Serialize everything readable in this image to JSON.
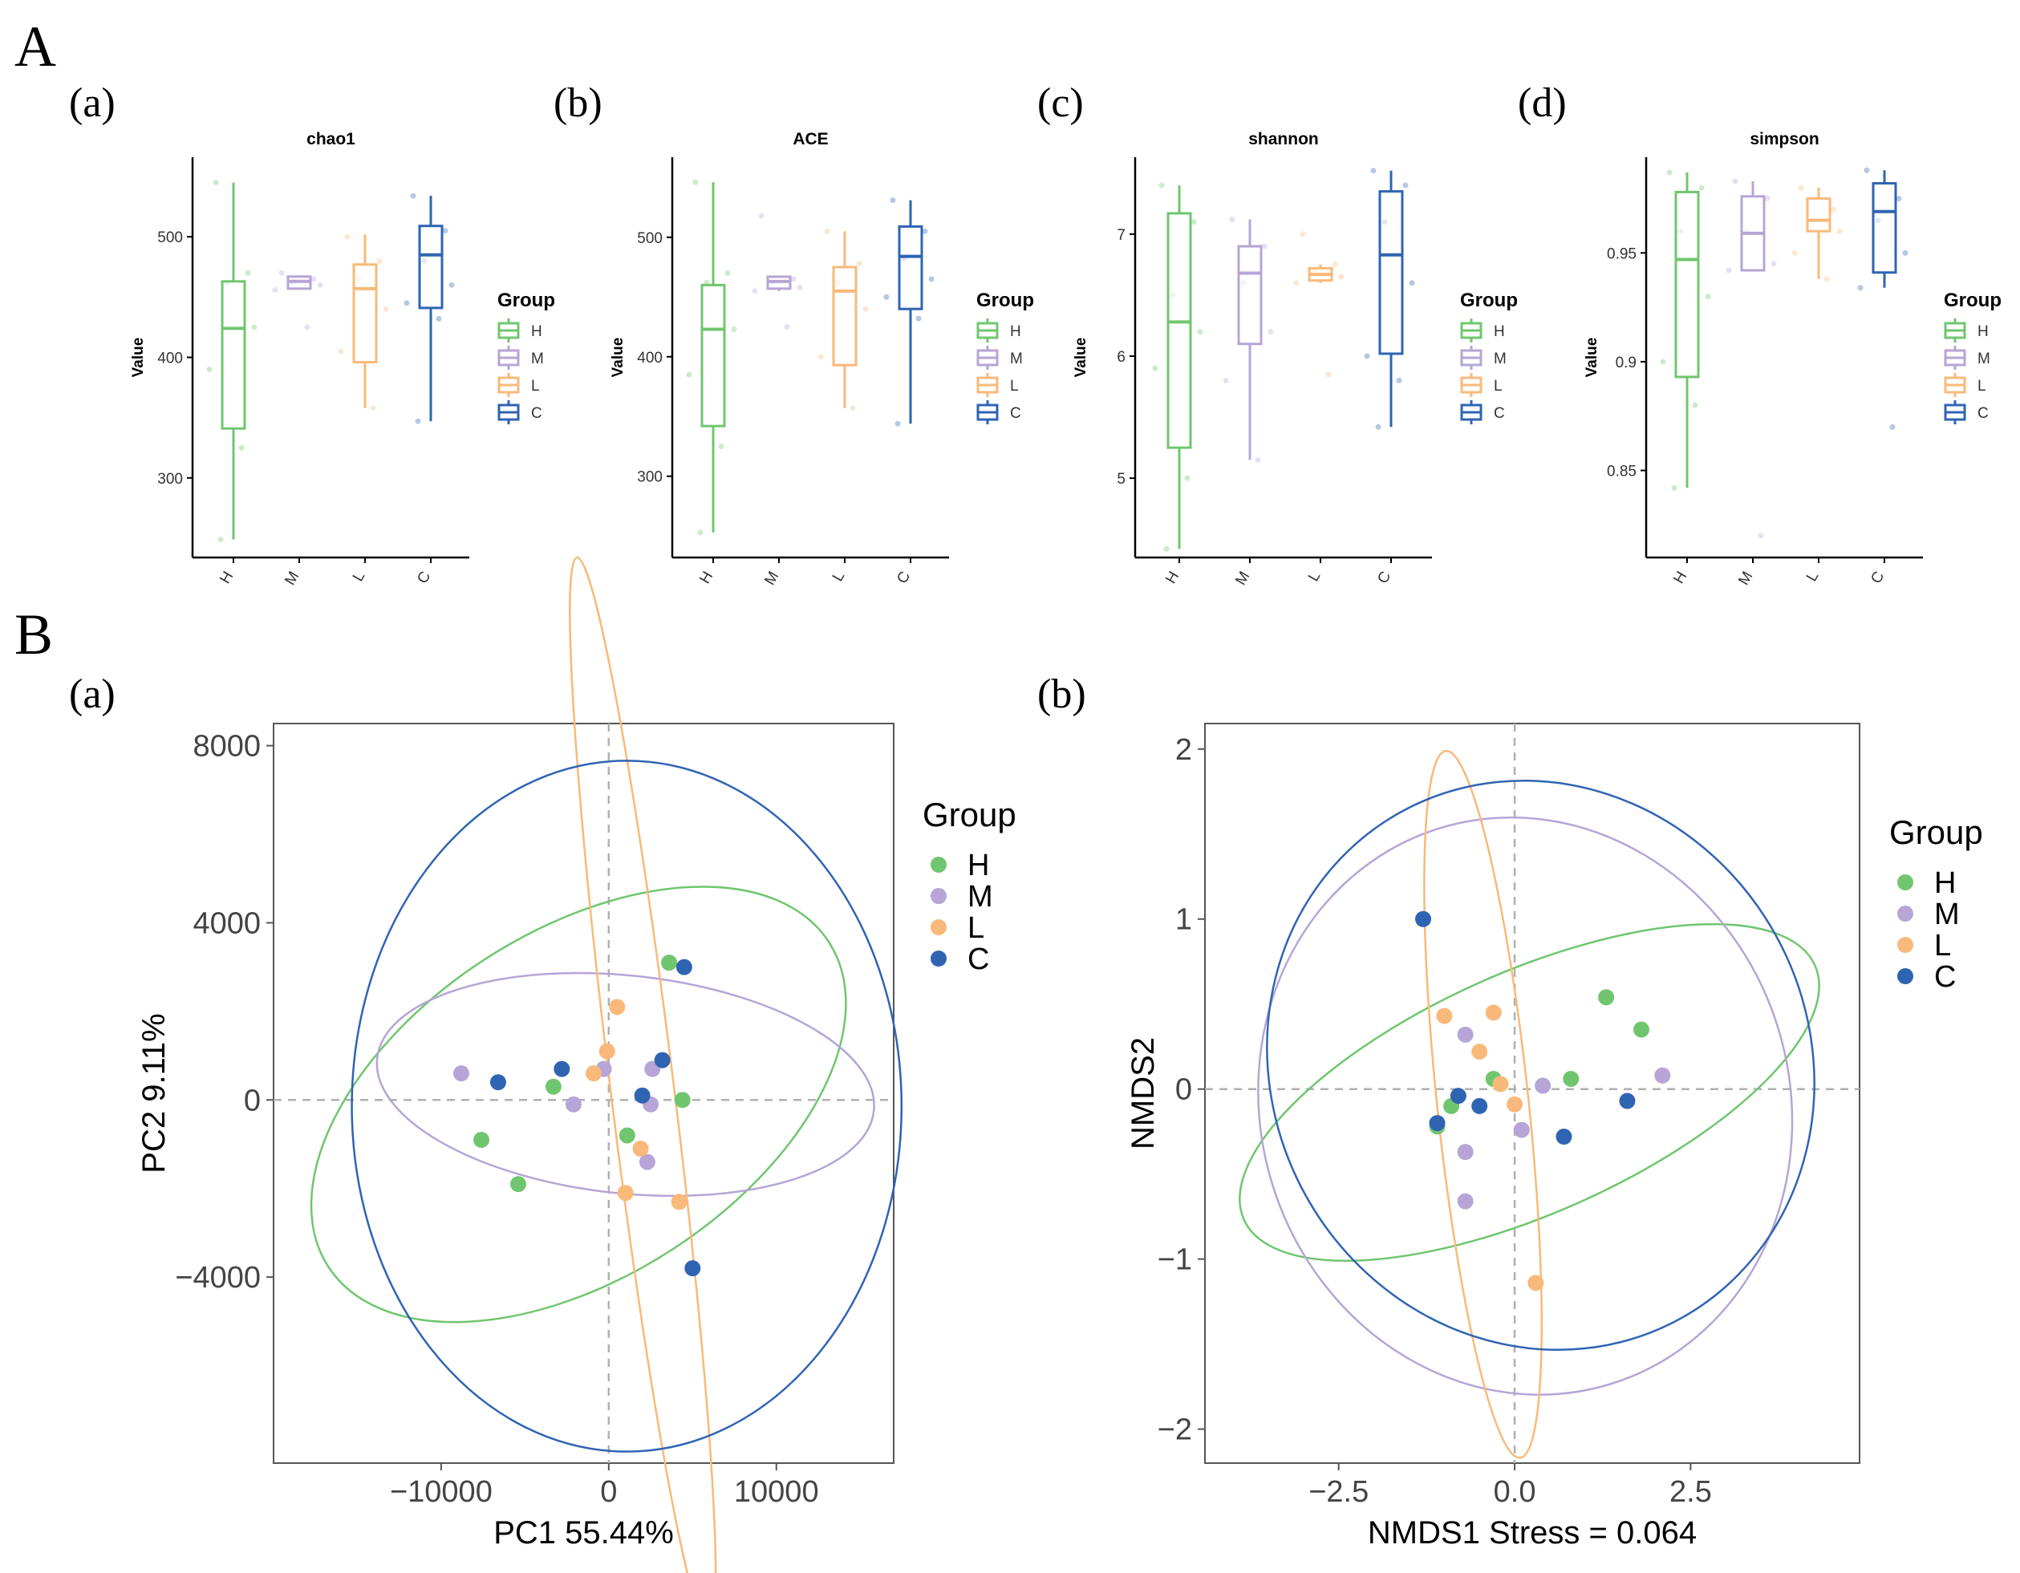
{
  "section_labels": {
    "A": "A",
    "B": "B"
  },
  "panel_labels": {
    "a": "(a)",
    "b": "(b)",
    "c": "(c)",
    "d": "(d)"
  },
  "colors": {
    "H": "#70c66e",
    "M": "#b6a5d6",
    "L": "#f9b97a",
    "C": "#2f64b3",
    "axis": "#000000",
    "frame": "#555555",
    "dash": "#b0b0b0"
  },
  "legend": {
    "title": "Group",
    "groups": [
      "H",
      "M",
      "L",
      "C"
    ]
  },
  "chart_data": [
    {
      "type": "box",
      "panel": "(a)",
      "title": "chao1",
      "ylabel": "Value",
      "categories": [
        "H",
        "M",
        "L",
        "C"
      ],
      "yticks": [
        300,
        400,
        500
      ],
      "ylim": [
        234,
        566
      ],
      "boxes": [
        {
          "group": "H",
          "min": 249,
          "q1": 341,
          "median": 424,
          "q3": 463,
          "max": 545
        },
        {
          "group": "M",
          "min": 456,
          "q1": 457,
          "median": 463,
          "q3": 467,
          "max": 467
        },
        {
          "group": "L",
          "min": 358,
          "q1": 396,
          "median": 457,
          "q3": 477,
          "max": 502
        },
        {
          "group": "C",
          "min": 347,
          "q1": 441,
          "median": 485,
          "q3": 509,
          "max": 534
        }
      ],
      "points": [
        {
          "group": "H",
          "values": [
            545,
            470,
            462,
            425,
            390,
            325,
            249
          ]
        },
        {
          "group": "M",
          "values": [
            470,
            465,
            462,
            460,
            456,
            425
          ]
        },
        {
          "group": "L",
          "values": [
            500,
            480,
            465,
            440,
            405,
            358
          ]
        },
        {
          "group": "C",
          "values": [
            534,
            505,
            480,
            460,
            445,
            432,
            347
          ]
        }
      ]
    },
    {
      "type": "box",
      "panel": "(b)",
      "title": "ACE",
      "ylabel": "Value",
      "categories": [
        "H",
        "M",
        "L",
        "C"
      ],
      "yticks": [
        300,
        400,
        500
      ],
      "ylim": [
        232,
        567
      ],
      "boxes": [
        {
          "group": "H",
          "min": 253,
          "q1": 342,
          "median": 423,
          "q3": 460,
          "max": 546
        },
        {
          "group": "M",
          "min": 455,
          "q1": 457,
          "median": 463,
          "q3": 467,
          "max": 467
        },
        {
          "group": "L",
          "min": 357,
          "q1": 393,
          "median": 455,
          "q3": 475,
          "max": 505
        },
        {
          "group": "C",
          "min": 344,
          "q1": 440,
          "median": 484,
          "q3": 509,
          "max": 531
        }
      ],
      "points": [
        {
          "group": "H",
          "values": [
            546,
            470,
            462,
            423,
            385,
            325,
            253
          ]
        },
        {
          "group": "M",
          "values": [
            518,
            465,
            462,
            458,
            455,
            425
          ]
        },
        {
          "group": "L",
          "values": [
            505,
            478,
            462,
            440,
            400,
            357
          ]
        },
        {
          "group": "C",
          "values": [
            531,
            505,
            482,
            465,
            450,
            432,
            344
          ]
        }
      ]
    },
    {
      "type": "box",
      "panel": "(c)",
      "title": "shannon",
      "ylabel": "Value",
      "categories": [
        "H",
        "M",
        "L",
        "C"
      ],
      "yticks": [
        5,
        6,
        7
      ],
      "ylim": [
        4.35,
        7.63
      ],
      "boxes": [
        {
          "group": "H",
          "min": 4.42,
          "q1": 5.25,
          "median": 6.28,
          "q3": 7.17,
          "max": 7.4
        },
        {
          "group": "M",
          "min": 5.15,
          "q1": 6.1,
          "median": 6.68,
          "q3": 6.9,
          "max": 7.12
        },
        {
          "group": "L",
          "min": 6.6,
          "q1": 6.62,
          "median": 6.67,
          "q3": 6.72,
          "max": 6.75
        },
        {
          "group": "C",
          "min": 5.42,
          "q1": 6.02,
          "median": 6.83,
          "q3": 7.35,
          "max": 7.52
        }
      ],
      "points": [
        {
          "group": "H",
          "values": [
            7.4,
            7.1,
            6.5,
            6.2,
            5.9,
            5.0,
            4.42
          ]
        },
        {
          "group": "M",
          "values": [
            7.12,
            6.9,
            6.6,
            6.2,
            5.8,
            5.15
          ]
        },
        {
          "group": "L",
          "values": [
            7.0,
            6.75,
            6.7,
            6.65,
            6.6,
            5.85
          ]
        },
        {
          "group": "C",
          "values": [
            7.52,
            7.4,
            7.1,
            6.6,
            6.0,
            5.8,
            5.42
          ]
        }
      ]
    },
    {
      "type": "box",
      "panel": "(d)",
      "title": "simpson",
      "ylabel": "Value",
      "categories": [
        "H",
        "M",
        "L",
        "C"
      ],
      "yticks": [
        0.85,
        0.9,
        0.95
      ],
      "ylim": [
        0.81,
        0.994
      ],
      "boxes": [
        {
          "group": "H",
          "min": 0.842,
          "q1": 0.893,
          "median": 0.947,
          "q3": 0.978,
          "max": 0.987
        },
        {
          "group": "M",
          "min": 0.942,
          "q1": 0.942,
          "median": 0.959,
          "q3": 0.976,
          "max": 0.983
        },
        {
          "group": "L",
          "min": 0.938,
          "q1": 0.96,
          "median": 0.965,
          "q3": 0.975,
          "max": 0.98
        },
        {
          "group": "C",
          "min": 0.934,
          "q1": 0.941,
          "median": 0.969,
          "q3": 0.982,
          "max": 0.988
        }
      ],
      "points": [
        {
          "group": "H",
          "values": [
            0.987,
            0.98,
            0.96,
            0.93,
            0.9,
            0.88,
            0.842
          ]
        },
        {
          "group": "M",
          "values": [
            0.983,
            0.975,
            0.96,
            0.945,
            0.942,
            0.82
          ]
        },
        {
          "group": "L",
          "values": [
            0.98,
            0.97,
            0.965,
            0.96,
            0.95,
            0.938
          ]
        },
        {
          "group": "C",
          "values": [
            0.988,
            0.975,
            0.965,
            0.95,
            0.934,
            0.87
          ]
        }
      ]
    },
    {
      "type": "scatter",
      "panel": "(a)",
      "xlabel": "PC1 55.44%",
      "ylabel": "PC2 9.11%",
      "xlim": [
        -20000,
        17000
      ],
      "ylim": [
        -8200,
        8500
      ],
      "xticks": [
        -10000,
        0,
        10000
      ],
      "xtick_labels": [
        "−10000",
        "0",
        "10000"
      ],
      "yticks": [
        -4000,
        0,
        4000,
        8000
      ],
      "ytick_labels": [
        "−4000",
        "0",
        "4000",
        "8000"
      ],
      "points": [
        {
          "group": "H",
          "x": 3600,
          "y": 3100
        },
        {
          "group": "H",
          "x": 4400,
          "y": 0
        },
        {
          "group": "H",
          "x": -3300,
          "y": 300
        },
        {
          "group": "H",
          "x": 1100,
          "y": -800
        },
        {
          "group": "H",
          "x": -7600,
          "y": -900
        },
        {
          "group": "H",
          "x": -5400,
          "y": -1900
        },
        {
          "group": "M",
          "x": -8800,
          "y": 600
        },
        {
          "group": "M",
          "x": -300,
          "y": 700
        },
        {
          "group": "M",
          "x": 2600,
          "y": 700
        },
        {
          "group": "M",
          "x": -2100,
          "y": -100
        },
        {
          "group": "M",
          "x": 2500,
          "y": -100
        },
        {
          "group": "M",
          "x": 2300,
          "y": -1400
        },
        {
          "group": "L",
          "x": 500,
          "y": 2100
        },
        {
          "group": "L",
          "x": -100,
          "y": 1100
        },
        {
          "group": "L",
          "x": -900,
          "y": 600
        },
        {
          "group": "L",
          "x": 1900,
          "y": -1100
        },
        {
          "group": "L",
          "x": 1000,
          "y": -2100
        },
        {
          "group": "L",
          "x": 4200,
          "y": -2300
        },
        {
          "group": "C",
          "x": 4500,
          "y": 3000
        },
        {
          "group": "C",
          "x": 3200,
          "y": 900
        },
        {
          "group": "C",
          "x": -2800,
          "y": 700
        },
        {
          "group": "C",
          "x": -6600,
          "y": 400
        },
        {
          "group": "C",
          "x": 2000,
          "y": 100
        },
        {
          "group": "C",
          "x": 5000,
          "y": -3800
        }
      ],
      "ellipses": [
        {
          "group": "H",
          "cx": -1800,
          "cy": -100,
          "rx": 17800,
          "ry": 3900,
          "angle_deg": 33
        },
        {
          "group": "M",
          "cx": 1000,
          "cy": 350,
          "rx": 14900,
          "ry": 2460,
          "angle_deg": -6
        },
        {
          "group": "L",
          "cx": 2030,
          "cy": 160,
          "rx": 1890,
          "ry": 12180,
          "angle_deg": 7
        },
        {
          "group": "C",
          "cx": 1070,
          "cy": -140,
          "rx": 16400,
          "ry": 7800,
          "angle_deg": 0
        }
      ]
    },
    {
      "type": "scatter",
      "panel": "(b)",
      "xlabel": "NMDS1  Stress = 0.064",
      "ylabel": "NMDS2",
      "xlim": [
        -4.4,
        4.9
      ],
      "ylim": [
        -2.2,
        2.15
      ],
      "xticks": [
        -2.5,
        0,
        2.5
      ],
      "xtick_labels": [
        "−2.5",
        "0.0",
        "2.5"
      ],
      "yticks": [
        -2,
        -1,
        0,
        1,
        2
      ],
      "ytick_labels": [
        "−2",
        "−1",
        "0",
        "1",
        "2"
      ],
      "points": [
        {
          "group": "H",
          "x": 1.3,
          "y": 0.54
        },
        {
          "group": "H",
          "x": 1.8,
          "y": 0.35
        },
        {
          "group": "H",
          "x": 0.8,
          "y": 0.06
        },
        {
          "group": "H",
          "x": -0.3,
          "y": 0.06
        },
        {
          "group": "H",
          "x": -0.9,
          "y": -0.1
        },
        {
          "group": "H",
          "x": -1.1,
          "y": -0.22
        },
        {
          "group": "M",
          "x": -0.7,
          "y": 0.32
        },
        {
          "group": "M",
          "x": 0.4,
          "y": 0.02
        },
        {
          "group": "M",
          "x": 2.1,
          "y": 0.08
        },
        {
          "group": "M",
          "x": 0.1,
          "y": -0.24
        },
        {
          "group": "M",
          "x": -0.7,
          "y": -0.37
        },
        {
          "group": "M",
          "x": -0.7,
          "y": -0.66
        },
        {
          "group": "L",
          "x": -1.0,
          "y": 0.43
        },
        {
          "group": "L",
          "x": -0.3,
          "y": 0.45
        },
        {
          "group": "L",
          "x": -0.5,
          "y": 0.22
        },
        {
          "group": "L",
          "x": -0.2,
          "y": 0.03
        },
        {
          "group": "L",
          "x": 0.0,
          "y": -0.09
        },
        {
          "group": "L",
          "x": 0.3,
          "y": -1.14
        },
        {
          "group": "C",
          "x": -1.3,
          "y": 1.0
        },
        {
          "group": "C",
          "x": -0.8,
          "y": -0.04
        },
        {
          "group": "C",
          "x": -0.5,
          "y": -0.1
        },
        {
          "group": "C",
          "x": -1.1,
          "y": -0.2
        },
        {
          "group": "C",
          "x": 0.7,
          "y": -0.28
        },
        {
          "group": "C",
          "x": 1.6,
          "y": -0.07
        }
      ],
      "ellipses": [
        {
          "group": "H",
          "cx": 0.21,
          "cy": -0.02,
          "rx": 4.44,
          "ry": 0.71,
          "angle_deg": 24
        },
        {
          "group": "M",
          "cx": 0.15,
          "cy": -0.1,
          "rx": 3.76,
          "ry": 1.71,
          "angle_deg": 17
        },
        {
          "group": "L",
          "cx": -0.45,
          "cy": -0.09,
          "rx": 0.65,
          "ry": 2.09,
          "angle_deg": 6
        },
        {
          "group": "C",
          "cx": 0.37,
          "cy": 0.14,
          "rx": 4.11,
          "ry": 1.58,
          "angle_deg": -61
        }
      ]
    }
  ]
}
